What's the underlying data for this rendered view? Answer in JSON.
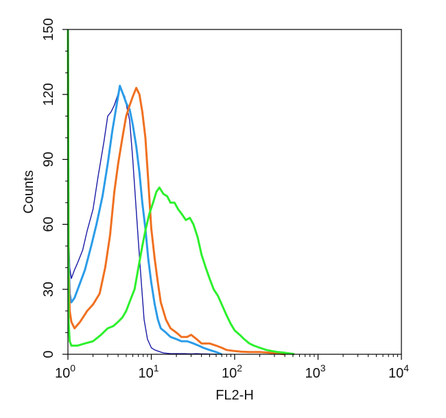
{
  "chart_data": {
    "type": "line",
    "title": "",
    "xlabel": "FL2-H",
    "ylabel": "Counts",
    "x_scale": "log",
    "xlim": [
      1,
      10000
    ],
    "ylim": [
      0,
      150
    ],
    "grid": false,
    "legend": "none",
    "x_ticks": [
      {
        "value": 1,
        "base": "10",
        "exp": "0"
      },
      {
        "value": 10,
        "base": "10",
        "exp": "1"
      },
      {
        "value": 100,
        "base": "10",
        "exp": "2"
      },
      {
        "value": 1000,
        "base": "10",
        "exp": "3"
      },
      {
        "value": 10000,
        "base": "10",
        "exp": "4"
      }
    ],
    "y_ticks": [
      {
        "value": 0,
        "label": "0"
      },
      {
        "value": 30,
        "label": "30"
      },
      {
        "value": 60,
        "label": "60"
      },
      {
        "value": 90,
        "label": "90"
      },
      {
        "value": 120,
        "label": "120"
      },
      {
        "value": 150,
        "label": "150"
      }
    ],
    "series": [
      {
        "color": "#1a1aa6",
        "width": 1.4,
        "x": [
          1,
          1.02,
          1.05,
          1.1,
          1.2,
          1.3,
          1.5,
          1.7,
          2.0,
          2.3,
          2.7,
          3.0,
          3.3,
          3.6,
          3.9,
          4.2,
          4.5,
          4.8,
          5.1,
          5.5,
          6.0,
          6.5,
          7.0,
          7.6,
          8.2,
          9.0,
          10,
          11,
          12,
          13,
          14,
          15,
          17,
          20,
          25,
          30,
          35,
          40,
          45,
          50,
          60
        ],
        "y": [
          150,
          60,
          40,
          35,
          39,
          42,
          48,
          57,
          67,
          82,
          98,
          110,
          112,
          115,
          119,
          123,
          121,
          119,
          114,
          108,
          90,
          70,
          52,
          33,
          16,
          7,
          3,
          2,
          1.5,
          1,
          0.6,
          0.5,
          0.3,
          0.3,
          0.3,
          0.2,
          0.3,
          0.2,
          0.2,
          0.1,
          0
        ]
      },
      {
        "color": "#2b9ce8",
        "width": 3.0,
        "x": [
          1,
          1.02,
          1.05,
          1.1,
          1.2,
          1.4,
          1.6,
          1.9,
          2.2,
          2.6,
          3.0,
          3.4,
          3.8,
          4.2,
          4.6,
          5.0,
          5.5,
          6.0,
          6.6,
          7.2,
          7.8,
          8.5,
          9.2,
          10,
          11,
          12,
          13,
          15,
          17,
          20,
          23,
          27,
          32,
          37,
          42,
          50,
          60,
          70
        ],
        "y": [
          150,
          45,
          28,
          24,
          26,
          33,
          39,
          50,
          60,
          73,
          88,
          103,
          114,
          124,
          120,
          116,
          113,
          106,
          96,
          84,
          70,
          58,
          44,
          33,
          23,
          16,
          12,
          10,
          8,
          7,
          6,
          6,
          5,
          4,
          3,
          2,
          1,
          0
        ]
      },
      {
        "color": "#f07020",
        "width": 3.0,
        "x": [
          1,
          1.02,
          1.05,
          1.1,
          1.2,
          1.4,
          1.7,
          2.0,
          2.4,
          2.8,
          3.2,
          3.6,
          4.0,
          4.5,
          5.0,
          5.5,
          6.0,
          6.6,
          7.2,
          7.8,
          8.5,
          9.2,
          10,
          11,
          12,
          13,
          15,
          17,
          20,
          23,
          27,
          30,
          35,
          40,
          50,
          60,
          70,
          80,
          100,
          120,
          150,
          200,
          250,
          300,
          350,
          400
        ],
        "y": [
          150,
          40,
          20,
          15,
          12,
          15,
          20,
          23,
          28,
          40,
          55,
          75,
          88,
          100,
          110,
          115,
          119,
          123,
          120,
          112,
          100,
          80,
          58,
          44,
          33,
          24,
          16,
          12,
          10,
          8,
          8,
          9,
          7,
          5,
          5,
          4,
          3,
          2,
          1.5,
          1.2,
          1,
          1,
          0.8,
          0.5,
          0.3,
          0
        ]
      },
      {
        "color": "#2df02d",
        "width": 3.0,
        "x": [
          1,
          1.02,
          1.05,
          1.1,
          1.3,
          1.6,
          2.0,
          2.5,
          3.0,
          3.5,
          4.0,
          4.5,
          5.0,
          5.6,
          6.3,
          7.0,
          7.8,
          8.6,
          9.5,
          10.5,
          11.5,
          12.5,
          14,
          15.5,
          17,
          19,
          21,
          23,
          26,
          29,
          32,
          36,
          40,
          45,
          50,
          56,
          63,
          70,
          80,
          90,
          100,
          115,
          130,
          150,
          170,
          200,
          240,
          280,
          330,
          400,
          450,
          500,
          520
        ],
        "y": [
          150,
          15,
          6,
          4,
          4,
          5,
          6,
          9,
          12,
          13,
          15,
          17,
          20,
          25,
          30,
          40,
          50,
          58,
          65,
          70,
          75,
          77,
          74,
          73,
          70,
          70,
          67,
          65,
          62,
          63,
          60,
          54,
          46,
          40,
          35,
          30,
          27,
          23,
          18,
          14,
          11,
          9,
          7,
          5,
          4,
          3,
          2,
          1.5,
          1,
          0.7,
          0.4,
          0.2,
          0
        ]
      }
    ]
  }
}
